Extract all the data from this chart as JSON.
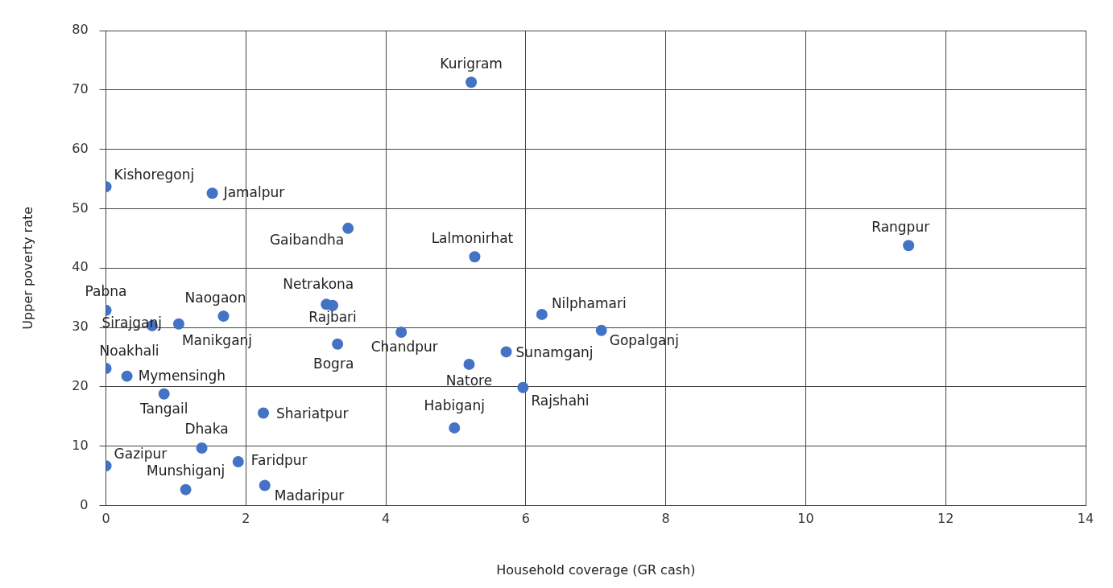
{
  "chart_data": {
    "type": "scatter",
    "xlabel": "Household coverage (GR cash)",
    "ylabel": "Upper poverty rate",
    "xlim": [
      0,
      14
    ],
    "xticks": [
      0,
      2,
      4,
      6,
      8,
      10,
      12,
      14
    ],
    "ylim": [
      0,
      80
    ],
    "yticks": [
      0,
      10,
      20,
      30,
      40,
      50,
      60,
      70,
      80
    ],
    "grid": true,
    "legend": false,
    "marker": "circle",
    "series": [
      {
        "name": "Kurigram",
        "color": "#4472c4",
        "x": [
          5.22
        ],
        "values": [
          71.3
        ]
      },
      {
        "name": "Kishoregonj",
        "color": "#4472c4",
        "x": [
          0
        ],
        "values": [
          53.7
        ]
      },
      {
        "name": "Jamalpur",
        "color": "#4472c4",
        "x": [
          1.52
        ],
        "values": [
          52.6
        ]
      },
      {
        "name": "Gaibandha",
        "color": "#4472c4",
        "x": [
          3.46
        ],
        "values": [
          46.7
        ]
      },
      {
        "name": "Lalmonirhat",
        "color": "#4472c4",
        "x": [
          5.27
        ],
        "values": [
          41.9
        ]
      },
      {
        "name": "Rangpur",
        "color": "#4472c4",
        "x": [
          11.47
        ],
        "values": [
          43.8
        ]
      },
      {
        "name": "Pabna",
        "color": "#4472c4",
        "x": [
          0
        ],
        "values": [
          32.9
        ]
      },
      {
        "name": "Sirajganj",
        "color": "#4472c4",
        "x": [
          0.66
        ],
        "values": [
          30.3
        ]
      },
      {
        "name": "Manikganj",
        "color": "#4472c4",
        "x": [
          1.04
        ],
        "values": [
          30.6
        ]
      },
      {
        "name": "Naogaon",
        "color": "#4472c4",
        "x": [
          1.68
        ],
        "values": [
          31.9
        ]
      },
      {
        "name": "Netrakona",
        "color": "#4472c4",
        "x": [
          3.15
        ],
        "values": [
          33.9
        ]
      },
      {
        "name": "Rajbari",
        "color": "#4472c4",
        "x": [
          3.24
        ],
        "values": [
          33.7
        ]
      },
      {
        "name": "Chandpur",
        "color": "#4472c4",
        "x": [
          4.22
        ],
        "values": [
          29.2
        ]
      },
      {
        "name": "Bogra",
        "color": "#4472c4",
        "x": [
          3.31
        ],
        "values": [
          27.2
        ]
      },
      {
        "name": "Nilphamari",
        "color": "#4472c4",
        "x": [
          6.23
        ],
        "values": [
          32.2
        ]
      },
      {
        "name": "Gopalganj",
        "color": "#4472c4",
        "x": [
          7.08
        ],
        "values": [
          29.5
        ]
      },
      {
        "name": "Sunamganj",
        "color": "#4472c4",
        "x": [
          5.72
        ],
        "values": [
          25.9
        ]
      },
      {
        "name": "Natore",
        "color": "#4472c4",
        "x": [
          5.19
        ],
        "values": [
          23.8
        ]
      },
      {
        "name": "Rajshahi",
        "color": "#4472c4",
        "x": [
          5.96
        ],
        "values": [
          19.9
        ]
      },
      {
        "name": "Habiganj",
        "color": "#4472c4",
        "x": [
          4.98
        ],
        "values": [
          13.1
        ]
      },
      {
        "name": "Noakhali",
        "color": "#4472c4",
        "x": [
          0
        ],
        "values": [
          23.1
        ]
      },
      {
        "name": "Mymensingh",
        "color": "#4472c4",
        "x": [
          0.3
        ],
        "values": [
          21.8
        ]
      },
      {
        "name": "Tangail",
        "color": "#4472c4",
        "x": [
          0.83
        ],
        "values": [
          18.8
        ]
      },
      {
        "name": "Shariatpur",
        "color": "#4472c4",
        "x": [
          2.25
        ],
        "values": [
          15.6
        ]
      },
      {
        "name": "Dhaka",
        "color": "#4472c4",
        "x": [
          1.37
        ],
        "values": [
          9.7
        ]
      },
      {
        "name": "Faridpur",
        "color": "#4472c4",
        "x": [
          1.89
        ],
        "values": [
          7.4
        ]
      },
      {
        "name": "Madaripur",
        "color": "#4472c4",
        "x": [
          2.27
        ],
        "values": [
          3.4
        ]
      },
      {
        "name": "Gazipur",
        "color": "#4472c4",
        "x": [
          0
        ],
        "values": [
          6.7
        ]
      },
      {
        "name": "Munshiganj",
        "color": "#4472c4",
        "x": [
          1.14
        ],
        "values": [
          2.7
        ]
      }
    ]
  }
}
